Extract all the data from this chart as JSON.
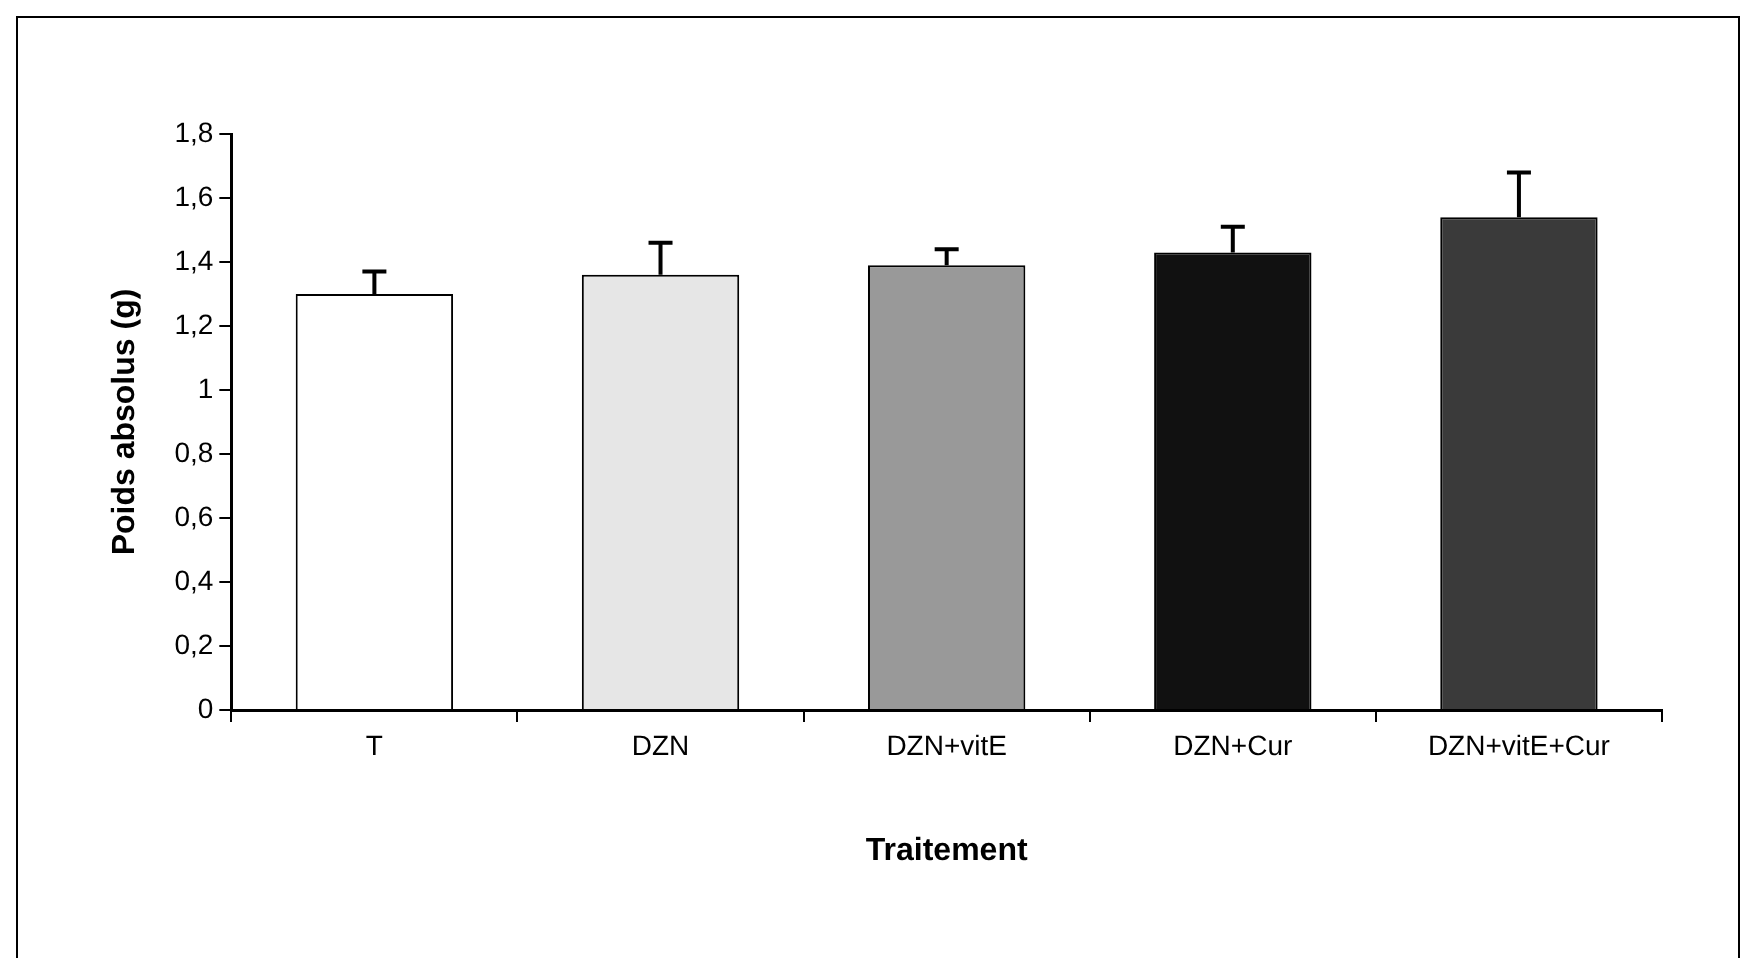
{
  "chart_data": {
    "type": "bar",
    "xlabel": "Traitement",
    "ylabel": "Poids absolus (g)",
    "categories": [
      "T",
      "DZN",
      "DZN+vitE",
      "DZN+Cur",
      "DZN+vitE+Cur"
    ],
    "values": [
      1.3,
      1.36,
      1.39,
      1.43,
      1.54
    ],
    "colors": [
      "#ffffff",
      "#e6e6e6",
      "#999999",
      "#111111",
      "#3a3a3a"
    ],
    "errors": [
      [
        1.3,
        1.37
      ],
      [
        1.36,
        1.46
      ],
      [
        1.39,
        1.44
      ],
      [
        1.43,
        1.51
      ],
      [
        1.54,
        1.68
      ]
    ],
    "ylim": [
      0,
      1.8
    ],
    "yticks": [
      0,
      {
        "value": 0.2,
        "label": "0,2"
      },
      {
        "value": 0.4,
        "label": "0,4"
      },
      {
        "value": 0.6,
        "label": "0,6"
      },
      {
        "value": 0.8,
        "label": "0,8"
      },
      1,
      {
        "value": 1.2,
        "label": "1,2"
      },
      {
        "value": 1.4,
        "label": "1,4"
      },
      {
        "value": 1.6,
        "label": "1,6"
      },
      {
        "value": 1.8,
        "label": "1,8"
      }
    ],
    "grid": false,
    "legend": false
  }
}
